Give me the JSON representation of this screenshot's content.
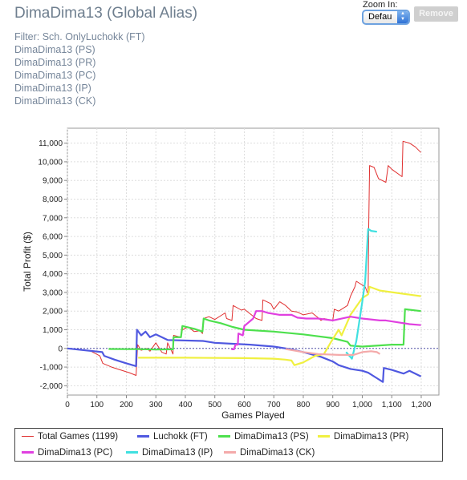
{
  "page": {
    "title": "DimaDima13 (Global Alias)",
    "filter_line": "Filter: Sch. OnlyLuchokk (FT)",
    "aliases": [
      "DimaDima13 (PS)",
      "DimaDima13 (PR)",
      "DimaDima13 (PC)",
      "DimaDima13 (IP)",
      "DimaDima13 (CK)"
    ]
  },
  "controls": {
    "zoom_label": "Zoom In:",
    "zoom_value": "Defau",
    "remove_label": "Remove"
  },
  "chart_data": {
    "type": "line",
    "xlabel": "Games Played",
    "ylabel": "Total Profit ($)",
    "xlim": [
      0,
      1260
    ],
    "ylim": [
      -2500,
      11800
    ],
    "x_ticks": [
      0,
      100,
      200,
      300,
      400,
      500,
      600,
      700,
      800,
      900,
      1000,
      1100,
      1200
    ],
    "x_tick_labels": [
      "0",
      "100",
      "200",
      "300",
      "400",
      "500",
      "600",
      "700",
      "800",
      "900",
      "1,000",
      "1,100",
      "1,200"
    ],
    "y_ticks": [
      -2000,
      -1000,
      0,
      1000,
      2000,
      3000,
      4000,
      5000,
      6000,
      7000,
      8000,
      9000,
      10000,
      11000
    ],
    "y_tick_labels": [
      "-2,000",
      "-1,000",
      "0",
      "1,000",
      "2,000",
      "3,000",
      "4,000",
      "5,000",
      "6,000",
      "7,000",
      "8,000",
      "9,000",
      "10,000",
      "11,000"
    ],
    "grid": true,
    "legend_position": "bottom",
    "series": [
      {
        "name": "Total Games (1199)",
        "color": "#e03030",
        "width": 1,
        "points": [
          [
            0,
            0
          ],
          [
            40,
            -50
          ],
          [
            80,
            -150
          ],
          [
            110,
            -400
          ],
          [
            120,
            -800
          ],
          [
            150,
            -1000
          ],
          [
            180,
            -1150
          ],
          [
            210,
            -1300
          ],
          [
            233,
            -1450
          ],
          [
            238,
            200
          ],
          [
            250,
            -100
          ],
          [
            270,
            0
          ],
          [
            280,
            -150
          ],
          [
            300,
            300
          ],
          [
            320,
            -200
          ],
          [
            335,
            -300
          ],
          [
            340,
            300
          ],
          [
            358,
            -300
          ],
          [
            360,
            700
          ],
          [
            385,
            600
          ],
          [
            390,
            1000
          ],
          [
            410,
            1150
          ],
          [
            430,
            900
          ],
          [
            450,
            950
          ],
          [
            458,
            800
          ],
          [
            462,
            1600
          ],
          [
            480,
            1700
          ],
          [
            500,
            1550
          ],
          [
            520,
            1750
          ],
          [
            535,
            1900
          ],
          [
            540,
            1600
          ],
          [
            558,
            1500
          ],
          [
            562,
            2300
          ],
          [
            590,
            2050
          ],
          [
            600,
            2100
          ],
          [
            640,
            1600
          ],
          [
            660,
            1500
          ],
          [
            663,
            2600
          ],
          [
            690,
            2400
          ],
          [
            700,
            2100
          ],
          [
            720,
            2500
          ],
          [
            740,
            2300
          ],
          [
            760,
            2000
          ],
          [
            780,
            1950
          ],
          [
            800,
            1800
          ],
          [
            830,
            1900
          ],
          [
            850,
            1650
          ],
          [
            860,
            1500
          ],
          [
            870,
            1600
          ],
          [
            900,
            1500
          ],
          [
            905,
            2100
          ],
          [
            920,
            2000
          ],
          [
            950,
            2300
          ],
          [
            960,
            2800
          ],
          [
            975,
            3300
          ],
          [
            980,
            3600
          ],
          [
            1010,
            3300
          ],
          [
            1020,
            2900
          ],
          [
            1022,
            6500
          ],
          [
            1025,
            9800
          ],
          [
            1040,
            9700
          ],
          [
            1055,
            9100
          ],
          [
            1080,
            8900
          ],
          [
            1088,
            9800
          ],
          [
            1100,
            9600
          ],
          [
            1135,
            9200
          ],
          [
            1138,
            11100
          ],
          [
            1160,
            11000
          ],
          [
            1180,
            10800
          ],
          [
            1199,
            10500
          ]
        ]
      },
      {
        "name": "Luchokk (FT)",
        "color": "#4f58e0",
        "width": 2.2,
        "points": [
          [
            0,
            0
          ],
          [
            118,
            -200
          ],
          [
            125,
            -400
          ],
          [
            160,
            -600
          ],
          [
            200,
            -800
          ],
          [
            233,
            -950
          ],
          [
            236,
            1000
          ],
          [
            250,
            700
          ],
          [
            265,
            900
          ],
          [
            280,
            600
          ],
          [
            300,
            750
          ],
          [
            320,
            600
          ],
          [
            340,
            450
          ],
          [
            460,
            400
          ],
          [
            500,
            300
          ],
          [
            560,
            250
          ],
          [
            620,
            200
          ],
          [
            700,
            100
          ],
          [
            760,
            -50
          ],
          [
            800,
            -200
          ],
          [
            860,
            -450
          ],
          [
            900,
            -700
          ],
          [
            920,
            -900
          ],
          [
            960,
            -1100
          ],
          [
            1000,
            -1200
          ],
          [
            1020,
            -1300
          ],
          [
            1050,
            -1600
          ],
          [
            1070,
            -1800
          ],
          [
            1073,
            -1050
          ],
          [
            1100,
            -1150
          ],
          [
            1140,
            -1350
          ],
          [
            1160,
            -1200
          ],
          [
            1199,
            -1500
          ]
        ]
      },
      {
        "name": "DimaDima13 (PS)",
        "color": "#4de04d",
        "width": 2.2,
        "points": [
          [
            140,
            -30
          ],
          [
            200,
            -40
          ],
          [
            240,
            -40
          ],
          [
            300,
            -60
          ],
          [
            358,
            -50
          ],
          [
            360,
            600
          ],
          [
            385,
            600
          ],
          [
            390,
            1200
          ],
          [
            430,
            1050
          ],
          [
            458,
            900
          ],
          [
            462,
            1600
          ],
          [
            480,
            1500
          ],
          [
            520,
            1350
          ],
          [
            560,
            1150
          ],
          [
            600,
            1000
          ],
          [
            700,
            900
          ],
          [
            800,
            750
          ],
          [
            900,
            550
          ],
          [
            950,
            350
          ],
          [
            960,
            150
          ],
          [
            1000,
            100
          ],
          [
            1100,
            200
          ],
          [
            1140,
            200
          ],
          [
            1145,
            2100
          ],
          [
            1199,
            2000
          ]
        ]
      },
      {
        "name": "DimaDima13 (PR)",
        "color": "#f0f040",
        "width": 2.2,
        "points": [
          [
            240,
            -500
          ],
          [
            400,
            -500
          ],
          [
            600,
            -520
          ],
          [
            700,
            -550
          ],
          [
            740,
            -600
          ],
          [
            760,
            -650
          ],
          [
            770,
            -900
          ],
          [
            800,
            -750
          ],
          [
            840,
            -400
          ],
          [
            870,
            -300
          ],
          [
            900,
            500
          ],
          [
            920,
            1000
          ],
          [
            930,
            700
          ],
          [
            960,
            1800
          ],
          [
            1000,
            2700
          ],
          [
            1020,
            2900
          ],
          [
            1025,
            3300
          ],
          [
            1060,
            3100
          ],
          [
            1199,
            2800
          ]
        ]
      },
      {
        "name": "DimaDima13 (PC)",
        "color": "#e040e0",
        "width": 2.2,
        "points": [
          [
            556,
            -50
          ],
          [
            565,
            -50
          ],
          [
            570,
            200
          ],
          [
            578,
            200
          ],
          [
            580,
            800
          ],
          [
            595,
            700
          ],
          [
            600,
            1200
          ],
          [
            630,
            1600
          ],
          [
            640,
            2000
          ],
          [
            660,
            2000
          ],
          [
            680,
            1900
          ],
          [
            720,
            1800
          ],
          [
            760,
            1800
          ],
          [
            780,
            1650
          ],
          [
            810,
            1600
          ],
          [
            850,
            1600
          ],
          [
            900,
            1500
          ],
          [
            960,
            1700
          ],
          [
            1000,
            1600
          ],
          [
            1060,
            1500
          ],
          [
            1080,
            1500
          ],
          [
            1120,
            1400
          ],
          [
            1160,
            1300
          ],
          [
            1199,
            1250
          ]
        ]
      },
      {
        "name": "DimaDima13 (IP)",
        "color": "#40e0e0",
        "width": 2.2,
        "points": [
          [
            945,
            -200
          ],
          [
            965,
            -550
          ],
          [
            980,
            400
          ],
          [
            1000,
            2500
          ],
          [
            1010,
            3600
          ],
          [
            1020,
            6400
          ],
          [
            1030,
            6300
          ],
          [
            1050,
            6250
          ]
        ]
      },
      {
        "name": "DimaDima13 (CK)",
        "color": "#f4aaaa",
        "width": 2.2,
        "points": [
          [
            740,
            -30
          ],
          [
            800,
            -200
          ],
          [
            850,
            -300
          ],
          [
            920,
            -350
          ],
          [
            970,
            -350
          ],
          [
            1000,
            -200
          ],
          [
            1030,
            -150
          ],
          [
            1050,
            -200
          ],
          [
            1060,
            -300
          ]
        ]
      }
    ]
  }
}
